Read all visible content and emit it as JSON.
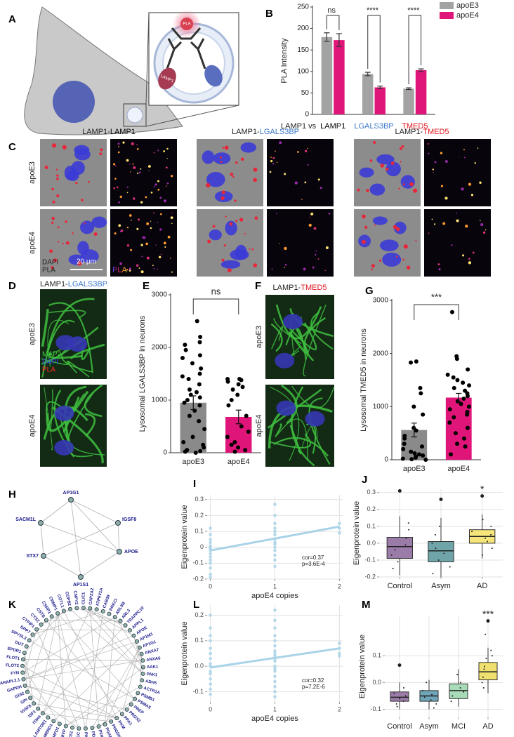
{
  "panel_letters": [
    "A",
    "B",
    "C",
    "D",
    "E",
    "F",
    "G",
    "H",
    "I",
    "J",
    "K",
    "L",
    "M"
  ],
  "figure_a": {
    "labels": [
      "PLA",
      "LAMP1"
    ]
  },
  "figure_c": {
    "columns": [
      {
        "prefix": "LAMP1-",
        "target": "LAMP1",
        "color": "#000000"
      },
      {
        "prefix": "LAMP1-",
        "target": "LGALS3BP",
        "color": "#3a78c9"
      },
      {
        "prefix": "LAMP1-",
        "target": "TMED5",
        "color": "#e0161e"
      }
    ],
    "rows": [
      "apoE3",
      "apoE4"
    ],
    "channels": [
      {
        "name": "DAPI",
        "color": "#3838ff"
      },
      {
        "name": "PLA",
        "color": "#ff2a2a"
      }
    ],
    "scale_bar": "20 µm",
    "lut_label": "PLA"
  },
  "figure_d": {
    "prefix": "LAMP1-",
    "target": "LGALS3BP",
    "color": "#3a78c9",
    "rows": [
      "apoE3",
      "apoE4"
    ],
    "channels": [
      {
        "name": "MAP2",
        "color": "#3fd03f"
      },
      {
        "name": "DAPI",
        "color": "#3838ff"
      },
      {
        "name": "PLA",
        "color": "#ff2a2a"
      }
    ]
  },
  "figure_f": {
    "prefix": "LAMP1-",
    "target": "TMED5",
    "color": "#e0161e",
    "rows": [
      "apoE3",
      "apoE4"
    ]
  },
  "network_h": {
    "nodes": [
      "AP1G1",
      "IGSF8",
      "APOE",
      "AP1S1",
      "STX7",
      "SACM1L"
    ]
  },
  "network_k": {
    "nodes": [
      "CAPZA2",
      "ATP6V1A",
      "CAB39",
      "PRKCI",
      "ARL8B",
      "ARL3",
      "TRAPPC10",
      "APPL1",
      "APOE",
      "AP1M1",
      "AP1G1",
      "ANXA7",
      "ANXA6",
      "AAK1",
      "PAK1",
      "ADH5",
      "ACTR1A",
      "PSMB1",
      "PSMA5",
      "PREP",
      "PROX2",
      "PPA1",
      "PKM",
      "PHGDH",
      "PGAM1",
      "PFKM",
      "PDCD6",
      "PACSIN2",
      "NSPL1C",
      "NCS1",
      "MVP",
      "MTHFD1",
      "LMBRD1",
      "LAMTOR1",
      "ITIH4",
      "ISF1",
      "IGSF8",
      "GPI",
      "GDI2",
      "GAPDH",
      "GABARAPL2.1",
      "FYN",
      "FLOT2",
      "FLOT1",
      "EPDR1",
      "DUT",
      "DPYSL3",
      "DPP7",
      "CYFIP1",
      "CTSZ",
      "CSTB",
      "CSRP1",
      "CRMP1",
      "COTL1",
      "COPB2",
      "CNPY2",
      "CLIC1"
    ]
  },
  "chart_data": [
    {
      "type": "bar",
      "ylabel": "PLA Intensity",
      "xlabel": "LAMP1 vs",
      "categories": [
        "LAMP1",
        "LGALS3BP",
        "TMED5"
      ],
      "category_colors": [
        "#000000",
        "#3a78c9",
        "#e0161e"
      ],
      "series": [
        {
          "name": "apoE3",
          "color": "#a3a3a3",
          "values": [
            180,
            94,
            60
          ],
          "errors": [
            10,
            4,
            2
          ]
        },
        {
          "name": "apoE4",
          "color": "#e0157a",
          "values": [
            173,
            63,
            103
          ],
          "errors": [
            15,
            3,
            3
          ]
        }
      ],
      "significance": [
        "ns",
        "****",
        "****"
      ],
      "ylim": [
        0,
        250
      ],
      "yticks": [
        0,
        50,
        100,
        150,
        200,
        250
      ],
      "legend": "upper right",
      "grid": false
    },
    {
      "type": "bar",
      "ylabel": "Lysosomal LGALS3BP in neurons",
      "categories": [
        "apoE3",
        "apoE4"
      ],
      "colors": [
        "#8a8a8a",
        "#e0157a"
      ],
      "values": [
        950,
        680
      ],
      "errors": [
        130,
        130
      ],
      "points": [
        [
          2500,
          2200,
          2100,
          2050,
          1950,
          1850,
          1800,
          1700,
          1600,
          1500,
          1450,
          1400,
          1300,
          1200,
          1150,
          1100,
          1050,
          1000,
          950,
          900,
          800,
          700,
          600,
          450,
          300,
          200,
          150,
          100,
          50,
          30,
          20,
          0
        ],
        [
          1400,
          1400,
          1380,
          1350,
          1300,
          1250,
          1200,
          1100,
          1000,
          900,
          700,
          500,
          400,
          300,
          200,
          150,
          100,
          50,
          20
        ]
      ],
      "significance": "ns",
      "ylim": [
        0,
        3000
      ],
      "yticks": [
        0,
        1000,
        2000,
        3000
      ],
      "grid": false
    },
    {
      "type": "bar",
      "ylabel": "Lysosomal TMED5 in neurons",
      "categories": [
        "apoE3",
        "apoE4"
      ],
      "colors": [
        "#8a8a8a",
        "#e0157a"
      ],
      "values": [
        560,
        1170
      ],
      "errors": [
        130,
        80
      ],
      "points": [
        [
          1850,
          1830,
          1350,
          1250,
          1000,
          850,
          600,
          550,
          450,
          400,
          300,
          250,
          200,
          150,
          120,
          100,
          80,
          60,
          40,
          20,
          10,
          0
        ],
        [
          2780,
          1950,
          1900,
          1700,
          1600,
          1550,
          1500,
          1450,
          1400,
          1350,
          1300,
          1250,
          1200,
          1150,
          1100,
          1050,
          1000,
          950,
          900,
          850,
          800,
          700,
          600,
          500,
          400,
          300,
          250,
          100
        ]
      ],
      "significance": "***",
      "ylim": [
        0,
        3000
      ],
      "yticks": [
        0,
        1000,
        2000,
        3000
      ],
      "grid": false
    },
    {
      "type": "scatter",
      "xlabel": "apoE4 copies",
      "ylabel": "Eigenprotein value",
      "color": "#a9d3e8",
      "x": [
        0,
        0,
        0,
        0,
        0,
        0,
        0,
        0,
        0,
        0,
        0,
        0,
        0,
        0,
        0,
        1,
        1,
        1,
        1,
        1,
        1,
        1,
        1,
        1,
        1,
        1,
        1,
        1,
        1,
        2,
        2,
        2
      ],
      "y": [
        0.08,
        0.05,
        0.03,
        0.01,
        0,
        -0.01,
        -0.02,
        -0.04,
        -0.06,
        -0.08,
        -0.1,
        -0.13,
        -0.17,
        -0.19,
        0.12,
        0.27,
        0.2,
        0.15,
        0.12,
        0.1,
        0.08,
        0.05,
        0.03,
        0.02,
        0,
        -0.02,
        -0.05,
        -0.08,
        -0.12,
        0.15,
        0.12,
        0.09
      ],
      "fit": {
        "x": [
          0,
          2
        ],
        "y": [
          -0.02,
          0.13
        ]
      },
      "annotation": [
        "cor=0.37",
        "p=3.6E-4"
      ],
      "xlim": [
        -0.05,
        2.05
      ],
      "xticks": [
        0,
        1,
        2
      ],
      "ylim": [
        -0.2,
        0.33
      ],
      "yticks": [
        -0.2,
        -0.1,
        0,
        0.1,
        0.2,
        0.3
      ],
      "grid": true
    },
    {
      "type": "box",
      "ylabel": "Eigenprotein value",
      "categories": [
        "Control",
        "Asym",
        "AD"
      ],
      "colors": [
        "#9b7ba8",
        "#6fa5a8",
        "#f5e57a"
      ],
      "boxes": [
        {
          "low": -0.19,
          "q1": -0.09,
          "median": -0.02,
          "q3": 0.035,
          "high": 0.16,
          "outliers": [
            0.31
          ],
          "points": [
            0.12,
            0.08,
            0.03,
            -0.01,
            -0.04,
            -0.07,
            -0.11,
            -0.15
          ]
        },
        {
          "low": -0.2,
          "q1": -0.11,
          "median": -0.045,
          "q3": 0.01,
          "high": 0.15,
          "outliers": [
            0.26
          ],
          "points": [
            0.1,
            0.05,
            0.0,
            -0.03,
            -0.06,
            -0.1,
            -0.14,
            -0.18
          ]
        },
        {
          "low": -0.09,
          "q1": 0.0,
          "median": 0.04,
          "q3": 0.08,
          "high": 0.17,
          "outliers": [
            0.28
          ],
          "points": [
            0.14,
            0.1,
            0.07,
            0.05,
            0.03,
            0.01,
            -0.03,
            -0.07
          ]
        }
      ],
      "significance": [
        null,
        null,
        "*"
      ],
      "ylim": [
        -0.2,
        0.32
      ],
      "yticks": [
        -0.2,
        -0.1,
        {
          "value": 0,
          "label": "0.0"
        },
        0.1,
        0.2,
        0.3
      ],
      "grid": true
    },
    {
      "type": "scatter",
      "xlabel": "apoE4 copies",
      "ylabel": "Eigenprotein value",
      "color": "#a9d3e8",
      "x": [
        0,
        0,
        0,
        0,
        0,
        0,
        0,
        0,
        0,
        0,
        0,
        0,
        0,
        0,
        0,
        1,
        1,
        1,
        1,
        1,
        1,
        1,
        1,
        1,
        1,
        1,
        1,
        1,
        1,
        1,
        1,
        1,
        1,
        1,
        2,
        2,
        2,
        2
      ],
      "y": [
        0.2,
        0.15,
        0.12,
        0.1,
        0.07,
        0.05,
        0.03,
        0.01,
        0,
        -0.02,
        -0.03,
        -0.05,
        -0.07,
        -0.09,
        -0.11,
        0.22,
        0.18,
        0.15,
        0.12,
        0.1,
        0.08,
        0.06,
        0.05,
        0.04,
        0.03,
        0.02,
        0,
        -0.01,
        -0.02,
        -0.04,
        -0.06,
        -0.08,
        -0.1,
        -0.12,
        0.09,
        0.07,
        0.05,
        0.04
      ],
      "fit": {
        "x": [
          0,
          2
        ],
        "y": [
          -0.005,
          0.07
        ]
      },
      "annotation": [
        "cor=0.32",
        "p=7.2E-6"
      ],
      "xlim": [
        -0.05,
        2.05
      ],
      "xticks": [
        0,
        1,
        2
      ],
      "ylim": [
        -0.14,
        0.24
      ],
      "yticks": [
        -0.1,
        {
          "value": 0,
          "label": "0.0"
        },
        0.1,
        0.2
      ],
      "grid": true
    },
    {
      "type": "box",
      "ylabel": "Eigenprotein value",
      "categories": [
        "Control",
        "Asym",
        "MCI",
        "AD"
      ],
      "colors": [
        "#9b7ba8",
        "#6fa5b8",
        "#a8dcb8",
        "#f0e070"
      ],
      "boxes": [
        {
          "low": -0.1,
          "q1": -0.07,
          "median": -0.055,
          "q3": -0.035,
          "high": 0.0,
          "outliers": [
            0.065
          ],
          "points": [
            -0.02,
            -0.04,
            -0.05,
            -0.06,
            -0.07,
            -0.08,
            -0.09
          ]
        },
        {
          "low": -0.1,
          "q1": -0.07,
          "median": -0.05,
          "q3": -0.03,
          "high": 0.01,
          "outliers": [],
          "points": [
            0.0,
            -0.03,
            -0.045,
            -0.055,
            -0.065,
            -0.08,
            -0.095
          ]
        },
        {
          "low": -0.09,
          "q1": -0.06,
          "median": -0.03,
          "q3": -0.005,
          "high": 0.05,
          "outliers": [],
          "points": [
            0.03,
            0.0,
            -0.02,
            -0.035,
            -0.05,
            -0.07
          ]
        },
        {
          "low": -0.04,
          "q1": 0.01,
          "median": 0.04,
          "q3": 0.075,
          "high": 0.13,
          "outliers": [
            0.23
          ],
          "points": [
            0.18,
            0.12,
            0.09,
            0.06,
            0.04,
            0.02,
            0.0,
            -0.02,
            0.1,
            0.05
          ]
        }
      ],
      "significance": [
        null,
        null,
        null,
        "***"
      ],
      "ylim": [
        -0.13,
        0.25
      ],
      "yticks": [
        -0.1,
        {
          "value": 0,
          "label": "0.0"
        },
        0.1
      ],
      "grid": true
    }
  ]
}
